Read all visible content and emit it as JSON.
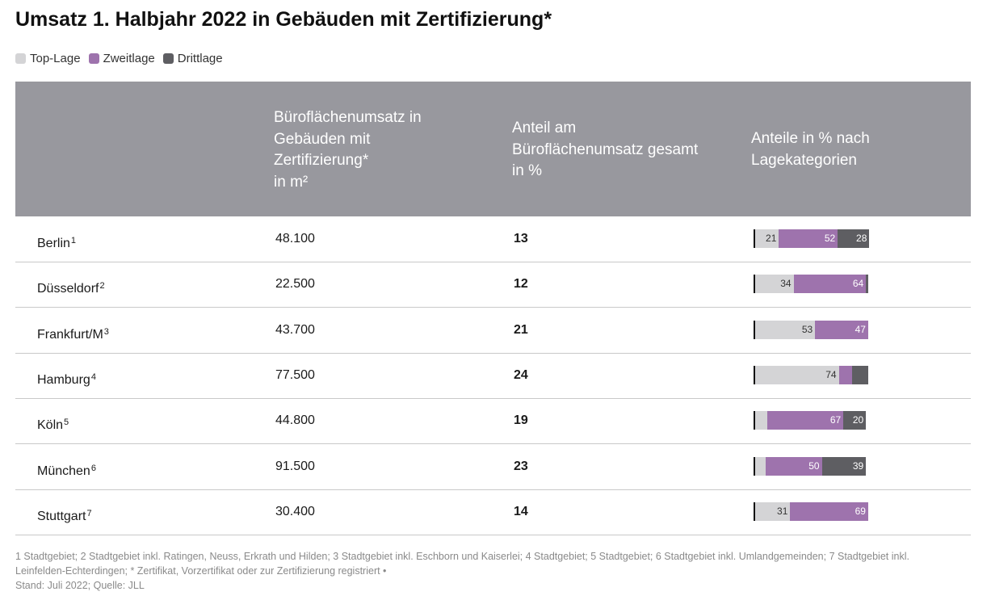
{
  "title": "Umsatz 1. Halbjahr 2022 in Gebäuden mit Zertifizierung*",
  "legend": [
    {
      "label": "Top-Lage",
      "color": "#d4d4d6"
    },
    {
      "label": "Zweitlage",
      "color": "#9e73ad"
    },
    {
      "label": "Drittlage",
      "color": "#5e5e62"
    }
  ],
  "header": {
    "col_area": "Büroflächenumsatz in\nGebäuden mit\nZertifizierung*\nin m²",
    "col_share": "Anteil am\nBüroflächenumsatz gesamt\nin %",
    "col_categories": "Anteile in % nach\nLagekategorien"
  },
  "chart_data": {
    "type": "bar",
    "orientation": "horizontal-stacked",
    "title": "Anteile in % nach Lagekategorien",
    "categories": [
      "Berlin",
      "Düsseldorf",
      "Frankfurt/M",
      "Hamburg",
      "Köln",
      "München",
      "Stuttgart"
    ],
    "series": [
      {
        "name": "Top-Lage",
        "values": [
          21,
          34,
          53,
          74,
          11,
          9,
          31
        ],
        "labels": [
          "21",
          "34",
          "53",
          "74",
          "",
          "",
          "31"
        ]
      },
      {
        "name": "Zweitlage",
        "values": [
          52,
          64,
          47,
          12,
          67,
          50,
          69
        ],
        "labels": [
          "52",
          "64",
          "47",
          "",
          "67",
          "50",
          "69"
        ]
      },
      {
        "name": "Drittlage",
        "values": [
          28,
          2,
          0,
          14,
          20,
          39,
          0
        ],
        "labels": [
          "28",
          "",
          "",
          "",
          "20",
          "39",
          ""
        ]
      }
    ],
    "xlim": [
      0,
      100
    ]
  },
  "rows": [
    {
      "city": "Berlin",
      "note": "1",
      "area": "48.100",
      "share": "13"
    },
    {
      "city": "Düsseldorf",
      "note": "2",
      "area": "22.500",
      "share": "12"
    },
    {
      "city": "Frankfurt/M",
      "note": "3",
      "area": "43.700",
      "share": "21"
    },
    {
      "city": "Hamburg",
      "note": "4",
      "area": "77.500",
      "share": "24"
    },
    {
      "city": "Köln",
      "note": "5",
      "area": "44.800",
      "share": "19"
    },
    {
      "city": "München",
      "note": " 6",
      "area": "91.500",
      "share": "23"
    },
    {
      "city": "Stuttgart",
      "note": "7",
      "area": "30.400",
      "share": "14"
    }
  ],
  "footnote": {
    "line1": "1 Stadtgebiet; 2 Stadtgebiet inkl. Ratingen, Neuss, Erkrath und Hilden; 3 Stadtgebiet inkl. Eschborn und Kaiserlei; 4 Stadtgebiet; 5 Stadtgebiet; 6 Stadtgebiet inkl. Umlandgemeinden; 7 Stadtgebiet inkl. Leinfelden-Echterdingen; * Zertifikat, Vorzertifikat oder zur Zertifizierung registriert •",
    "line2": "Stand: Juli 2022; Quelle: JLL"
  }
}
